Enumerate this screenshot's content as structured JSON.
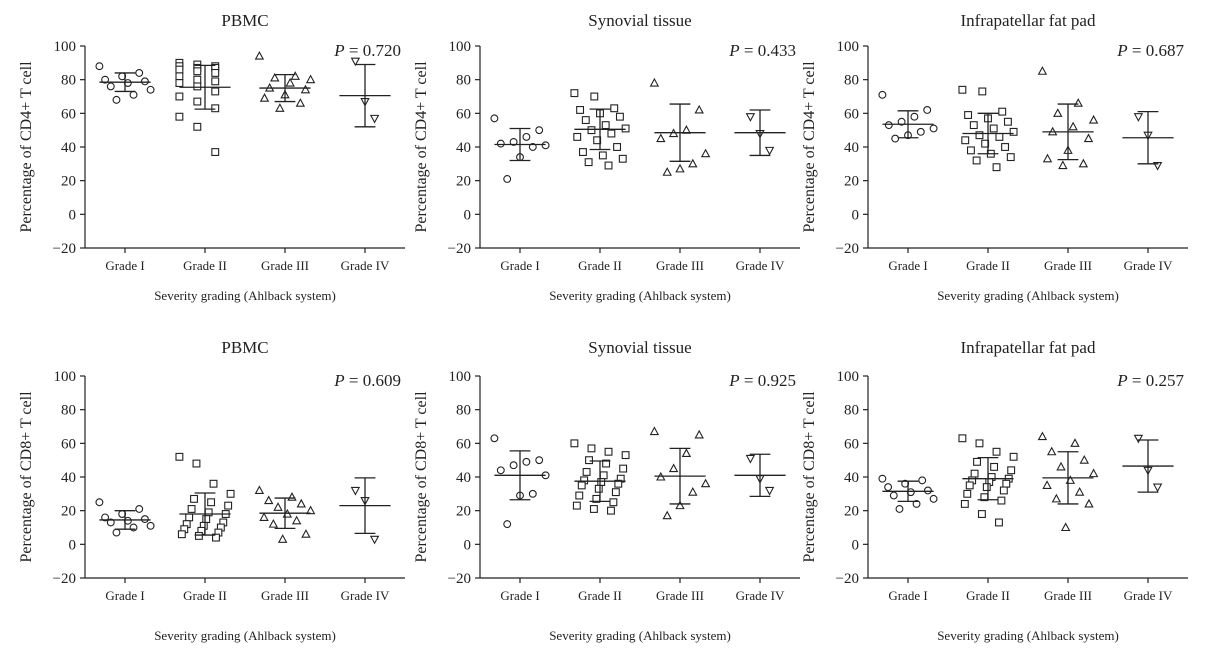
{
  "chart_data": [
    {
      "type": "scatter",
      "title": "PBMC",
      "annotation": {
        "label": "P",
        "value": "= 0.720"
      },
      "ylabel": "Percentage of CD4+ T cell",
      "xlabel": "Severity grading (Ahlback system)",
      "categories": [
        "Grade I",
        "Grade II",
        "Grade III",
        "Grade IV"
      ],
      "markers": [
        "circle",
        "square",
        "triangle-up",
        "triangle-down"
      ],
      "ylim": [
        -20,
        100
      ],
      "yticks": [
        -20,
        0,
        20,
        40,
        60,
        80,
        100
      ],
      "series": [
        {
          "values": [
            88,
            84,
            82,
            80,
            79,
            78,
            76,
            74,
            71,
            68
          ],
          "mean": 78.5,
          "sd": 5.5
        },
        {
          "values": [
            90,
            89,
            88,
            88,
            87,
            87,
            86,
            85,
            84,
            82,
            80,
            79,
            78,
            76,
            73,
            70,
            67,
            63,
            58,
            52,
            37
          ],
          "mean": 75.5,
          "sd": 13
        },
        {
          "values": [
            94,
            82,
            81,
            80,
            78,
            75,
            74,
            71,
            69,
            66,
            63
          ],
          "mean": 75,
          "sd": 8
        },
        {
          "values": [
            91,
            67,
            57
          ],
          "mean": 70.5,
          "sd": 18.5
        }
      ]
    },
    {
      "type": "scatter",
      "title": "Synovial tissue",
      "annotation": {
        "label": "P",
        "value": "= 0.433"
      },
      "ylabel": "Percentage of CD4+ T cell",
      "xlabel": "Severity grading (Ahlback system)",
      "categories": [
        "Grade I",
        "Grade II",
        "Grade III",
        "Grade IV"
      ],
      "markers": [
        "circle",
        "square",
        "triangle-up",
        "triangle-down"
      ],
      "ylim": [
        -20,
        100
      ],
      "yticks": [
        -20,
        0,
        20,
        40,
        60,
        80,
        100
      ],
      "series": [
        {
          "values": [
            57,
            50,
            46,
            43,
            42,
            41,
            40,
            34,
            21
          ],
          "mean": 41.5,
          "sd": 9.5
        },
        {
          "values": [
            72,
            70,
            63,
            62,
            60,
            58,
            56,
            53,
            51,
            50,
            48,
            46,
            44,
            40,
            37,
            35,
            33,
            31,
            29
          ],
          "mean": 50.5,
          "sd": 12
        },
        {
          "values": [
            78,
            62,
            50,
            48,
            45,
            36,
            30,
            27,
            25
          ],
          "mean": 48.5,
          "sd": 17
        },
        {
          "values": [
            58,
            48,
            38
          ],
          "mean": 48.5,
          "sd": 13.5
        }
      ]
    },
    {
      "type": "scatter",
      "title": "Infrapatellar fat pad",
      "annotation": {
        "label": "P",
        "value": "= 0.687"
      },
      "ylabel": "Percentage of CD4+ T cell",
      "xlabel": "Severity grading (Ahlback system)",
      "categories": [
        "Grade I",
        "Grade II",
        "Grade III",
        "Grade IV"
      ],
      "markers": [
        "circle",
        "square",
        "triangle-up",
        "triangle-down"
      ],
      "ylim": [
        -20,
        100
      ],
      "yticks": [
        -20,
        0,
        20,
        40,
        60,
        80,
        100
      ],
      "series": [
        {
          "values": [
            71,
            62,
            58,
            55,
            53,
            51,
            49,
            47,
            45
          ],
          "mean": 53.5,
          "sd": 8
        },
        {
          "values": [
            74,
            73,
            61,
            59,
            57,
            55,
            53,
            51,
            49,
            47,
            46,
            44,
            42,
            40,
            38,
            36,
            34,
            32,
            28
          ],
          "mean": 48,
          "sd": 12
        },
        {
          "values": [
            85,
            66,
            60,
            56,
            52,
            49,
            45,
            38,
            33,
            30,
            29
          ],
          "mean": 49,
          "sd": 16.5
        },
        {
          "values": [
            58,
            47,
            29
          ],
          "mean": 45.5,
          "sd": 15.5
        }
      ]
    },
    {
      "type": "scatter",
      "title": "PBMC",
      "annotation": {
        "label": "P",
        "value": "= 0.609"
      },
      "ylabel": "Percentage of CD8+ T cell",
      "xlabel": "Severity grading (Ahlback system)",
      "categories": [
        "Grade I",
        "Grade II",
        "Grade III",
        "Grade IV"
      ],
      "markers": [
        "circle",
        "square",
        "triangle-up",
        "triangle-down"
      ],
      "ylim": [
        -20,
        100
      ],
      "yticks": [
        -20,
        0,
        20,
        40,
        60,
        80,
        100
      ],
      "series": [
        {
          "values": [
            25,
            21,
            18,
            16,
            15,
            14,
            13,
            11,
            10,
            7
          ],
          "mean": 14.5,
          "sd": 5.5
        },
        {
          "values": [
            52,
            48,
            36,
            30,
            27,
            25,
            23,
            21,
            19,
            18,
            16,
            15,
            13,
            12,
            11,
            10,
            9,
            8,
            7,
            6,
            5,
            4
          ],
          "mean": 18,
          "sd": 12.5
        },
        {
          "values": [
            32,
            28,
            26,
            24,
            22,
            20,
            18,
            16,
            14,
            12,
            6,
            3
          ],
          "mean": 18.5,
          "sd": 9
        },
        {
          "values": [
            32,
            26,
            3
          ],
          "mean": 23,
          "sd": 16.5
        }
      ]
    },
    {
      "type": "scatter",
      "title": "Synovial tissue",
      "annotation": {
        "label": "P",
        "value": "= 0.925"
      },
      "ylabel": "Percentage of CD8+ T cell",
      "xlabel": "Severity grading (Ahlback system)",
      "categories": [
        "Grade I",
        "Grade II",
        "Grade III",
        "Grade IV"
      ],
      "markers": [
        "circle",
        "square",
        "triangle-up",
        "triangle-down"
      ],
      "ylim": [
        -20,
        100
      ],
      "yticks": [
        -20,
        0,
        20,
        40,
        60,
        80,
        100
      ],
      "series": [
        {
          "values": [
            63,
            50,
            49,
            47,
            44,
            41,
            30,
            29,
            12
          ],
          "mean": 41,
          "sd": 14.5
        },
        {
          "values": [
            60,
            57,
            55,
            53,
            50,
            48,
            45,
            43,
            41,
            39,
            38,
            37,
            36,
            35,
            33,
            31,
            29,
            27,
            25,
            23,
            21,
            20
          ],
          "mean": 37.5,
          "sd": 12
        },
        {
          "values": [
            67,
            65,
            54,
            45,
            40,
            36,
            31,
            23,
            17
          ],
          "mean": 40.5,
          "sd": 16.5
        },
        {
          "values": [
            51,
            39,
            32
          ],
          "mean": 41,
          "sd": 12.5
        }
      ]
    },
    {
      "type": "scatter",
      "title": "Infrapatellar fat pad",
      "annotation": {
        "label": "P",
        "value": "= 0.257"
      },
      "ylabel": "Percentage of CD8+ T cell",
      "xlabel": "Severity grading (Ahlback system)",
      "categories": [
        "Grade I",
        "Grade II",
        "Grade III",
        "Grade IV"
      ],
      "markers": [
        "circle",
        "square",
        "triangle-up",
        "triangle-down"
      ],
      "ylim": [
        -20,
        100
      ],
      "yticks": [
        -20,
        0,
        20,
        40,
        60,
        80,
        100
      ],
      "series": [
        {
          "values": [
            39,
            38,
            36,
            34,
            32,
            31,
            29,
            27,
            24,
            21
          ],
          "mean": 31.5,
          "sd": 6
        },
        {
          "values": [
            63,
            60,
            55,
            52,
            49,
            46,
            44,
            42,
            40,
            39,
            38,
            37,
            36,
            35,
            34,
            32,
            30,
            28,
            26,
            24,
            18,
            13
          ],
          "mean": 39,
          "sd": 12.5
        },
        {
          "values": [
            64,
            60,
            55,
            50,
            46,
            42,
            38,
            35,
            31,
            27,
            24,
            10
          ],
          "mean": 39.5,
          "sd": 15.5
        },
        {
          "values": [
            63,
            44,
            34
          ],
          "mean": 46.5,
          "sd": 15.5
        }
      ]
    }
  ]
}
